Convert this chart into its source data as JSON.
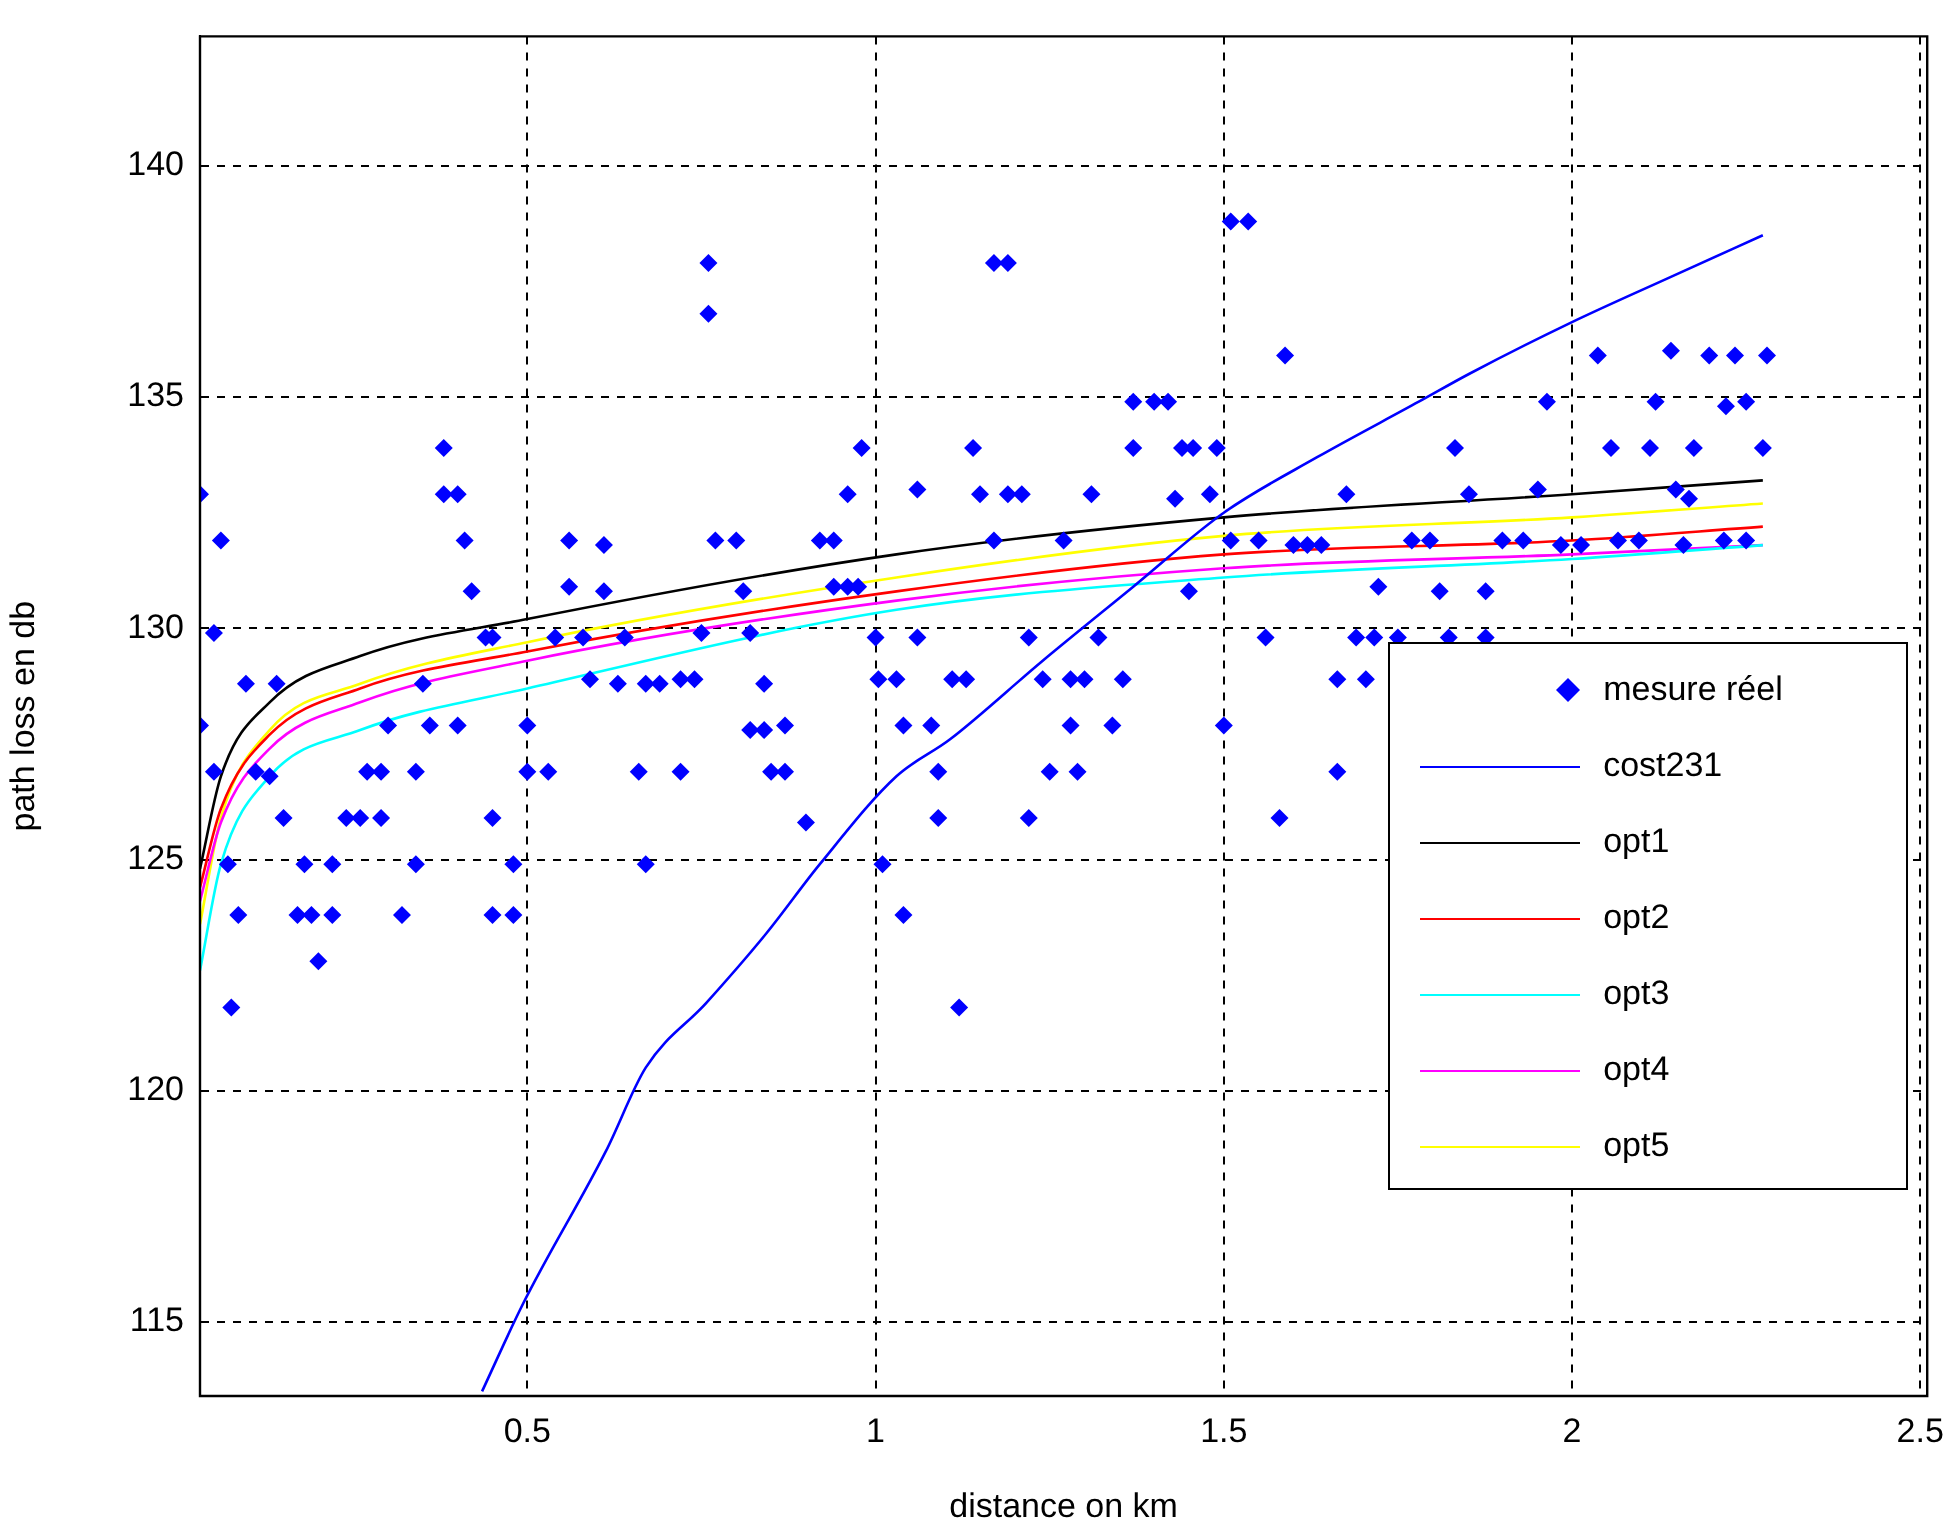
{
  "chart_data": {
    "type": "line",
    "xlabel": "distance on km",
    "ylabel": "path loss en db",
    "xlim": [
      0.03,
      2.51
    ],
    "ylim": [
      113.4,
      142.8
    ],
    "xticks": [
      0.5,
      1,
      1.5,
      2,
      2.5
    ],
    "yticks": [
      115,
      120,
      125,
      130,
      135,
      140
    ],
    "grid": true,
    "legend": "right",
    "series": [
      {
        "name": "mesure réel",
        "type": "scatter",
        "marker": "diamond",
        "color": "#0000ff",
        "x": [
          0.03,
          0.06,
          0.05,
          0.03,
          0.05,
          0.07,
          0.085,
          0.075,
          0.096,
          0.14,
          0.11,
          0.13,
          0.15,
          0.18,
          0.17,
          0.19,
          0.22,
          0.22,
          0.2,
          0.24,
          0.26,
          0.29,
          0.27,
          0.29,
          0.3,
          0.32,
          0.34,
          0.34,
          0.35,
          0.36,
          0.4,
          0.38,
          0.38,
          0.4,
          0.41,
          0.42,
          0.44,
          0.45,
          0.45,
          0.45,
          0.48,
          0.48,
          0.5,
          0.5,
          0.53,
          0.54,
          0.56,
          0.56,
          0.58,
          0.59,
          0.61,
          0.61,
          0.63,
          0.64,
          0.66,
          0.67,
          0.69,
          0.67,
          0.72,
          0.74,
          0.72,
          0.75,
          0.76,
          0.76,
          0.77,
          0.8,
          0.81,
          0.82,
          0.82,
          0.84,
          0.84,
          0.85,
          0.87,
          0.87,
          0.9,
          0.92,
          0.94,
          0.94,
          0.96,
          0.975,
          0.96,
          0.98,
          1.0,
          1.004,
          1.03,
          1.04,
          1.08,
          1.01,
          1.04,
          1.06,
          1.06,
          1.09,
          1.09,
          1.12,
          1.11,
          1.13,
          1.14,
          1.15,
          1.17,
          1.19,
          1.17,
          1.19,
          1.21,
          1.22,
          1.22,
          1.24,
          1.25,
          1.27,
          1.28,
          1.28,
          1.3,
          1.29,
          1.31,
          1.32,
          1.34,
          1.355,
          1.37,
          1.4,
          1.42,
          1.37,
          1.43,
          1.44,
          1.456,
          1.45,
          1.48,
          1.49,
          1.5,
          1.51,
          1.51,
          1.535,
          1.55,
          1.56,
          1.58,
          1.588,
          1.6,
          1.62,
          1.64,
          1.663,
          1.663,
          1.676,
          1.69,
          1.716,
          1.75,
          1.704,
          1.722,
          1.77,
          1.796,
          1.81,
          1.823,
          1.876,
          1.832,
          1.852,
          1.876,
          1.9,
          1.93,
          1.951,
          1.964,
          1.984,
          2.013,
          2.037,
          2.056,
          2.066,
          2.096,
          2.112,
          2.12,
          2.142,
          2.149,
          2.16,
          2.168,
          2.175,
          2.197,
          2.218,
          2.221,
          2.234,
          2.25,
          2.25,
          2.274,
          2.28
        ],
        "values": [
          132.9,
          131.9,
          129.9,
          127.9,
          126.9,
          124.9,
          123.8,
          121.8,
          128.8,
          128.8,
          126.9,
          126.8,
          125.9,
          124.9,
          123.8,
          123.8,
          123.8,
          124.9,
          122.8,
          125.9,
          125.9,
          125.9,
          126.9,
          126.9,
          127.9,
          123.8,
          124.9,
          126.9,
          128.8,
          127.9,
          127.9,
          133.9,
          132.9,
          132.9,
          131.9,
          130.8,
          129.8,
          129.8,
          125.9,
          123.8,
          123.8,
          124.9,
          127.9,
          126.9,
          126.9,
          129.8,
          131.9,
          130.9,
          129.8,
          128.9,
          131.8,
          130.8,
          128.8,
          129.8,
          126.9,
          128.8,
          128.8,
          124.9,
          128.9,
          128.9,
          126.9,
          129.9,
          137.9,
          136.8,
          131.9,
          131.9,
          130.8,
          129.9,
          127.8,
          127.8,
          128.8,
          126.9,
          126.9,
          127.9,
          125.8,
          131.9,
          131.9,
          130.9,
          130.9,
          130.9,
          132.9,
          133.9,
          129.8,
          128.9,
          128.9,
          127.9,
          127.9,
          124.9,
          123.8,
          129.8,
          133,
          126.9,
          125.9,
          121.8,
          128.9,
          128.9,
          133.9,
          132.9,
          137.9,
          137.9,
          131.9,
          132.9,
          132.9,
          125.9,
          129.8,
          128.9,
          126.9,
          131.9,
          127.9,
          128.9,
          128.9,
          126.9,
          132.9,
          129.8,
          127.9,
          128.9,
          134.9,
          134.9,
          134.9,
          133.9,
          132.8,
          133.9,
          133.9,
          130.8,
          132.9,
          133.9,
          127.9,
          131.9,
          138.8,
          138.8,
          131.9,
          129.8,
          125.9,
          135.9,
          131.8,
          131.8,
          131.8,
          128.9,
          126.9,
          132.9,
          129.8,
          129.8,
          129.8,
          128.9,
          130.9,
          131.9,
          131.9,
          130.8,
          129.8,
          129.8,
          133.9,
          132.9,
          130.8,
          131.9,
          131.9,
          133,
          134.9,
          131.8,
          131.8,
          135.9,
          133.9,
          131.9,
          131.9,
          133.9,
          134.9,
          136,
          133,
          131.8,
          132.8,
          133.9,
          135.9,
          131.9,
          134.8,
          135.9,
          134.9,
          131.9,
          133.9,
          135.9
        ]
      },
      {
        "name": "cost231",
        "color": "#0000ff",
        "x": [
          0.435,
          0.494,
          0.613,
          0.67,
          0.757,
          0.843,
          0.92,
          1.03,
          1.107,
          1.24,
          1.37,
          1.5,
          1.634,
          1.78,
          1.852,
          1.997,
          2.142,
          2.274
        ],
        "values": [
          113.5,
          115.4,
          118.7,
          120.5,
          121.9,
          123.4,
          124.9,
          126.8,
          127.6,
          129.3,
          130.9,
          132.5,
          133.7,
          134.9,
          135.5,
          136.6,
          137.6,
          138.5
        ]
      },
      {
        "name": "opt1",
        "color": "#000000",
        "x": [
          0.03,
          0.06,
          0.13,
          0.26,
          0.5,
          1.03,
          1.5,
          2.0,
          2.274
        ],
        "values": [
          124.8,
          126.8,
          128.4,
          129.4,
          130.2,
          131.6,
          132.4,
          132.9,
          133.2
        ]
      },
      {
        "name": "opt2",
        "color": "#ff0000",
        "x": [
          0.03,
          0.06,
          0.13,
          0.26,
          0.5,
          1.03,
          1.5,
          2.0,
          2.274
        ],
        "values": [
          124.4,
          126.1,
          127.7,
          128.7,
          129.5,
          130.8,
          131.6,
          131.9,
          132.2
        ]
      },
      {
        "name": "opt3",
        "color": "#00ffff",
        "x": [
          0.03,
          0.06,
          0.13,
          0.26,
          0.5,
          1.03,
          1.5,
          2.0,
          2.274
        ],
        "values": [
          122.6,
          124.9,
          126.8,
          127.8,
          128.7,
          130.4,
          131.1,
          131.5,
          131.8
        ]
      },
      {
        "name": "opt4",
        "color": "#ff00ff",
        "x": [
          0.03,
          0.06,
          0.13,
          0.26,
          0.5,
          1.03,
          1.5,
          2.0,
          2.274
        ],
        "values": [
          124.1,
          125.8,
          127.4,
          128.4,
          129.3,
          130.6,
          131.3,
          131.6,
          131.8
        ]
      },
      {
        "name": "opt5",
        "color": "#ffff00",
        "x": [
          0.03,
          0.06,
          0.13,
          0.26,
          0.5,
          1.03,
          1.5,
          2.0,
          2.274
        ],
        "values": [
          123.6,
          125.9,
          127.8,
          128.8,
          129.7,
          131.1,
          132.0,
          132.4,
          132.7
        ]
      }
    ]
  }
}
